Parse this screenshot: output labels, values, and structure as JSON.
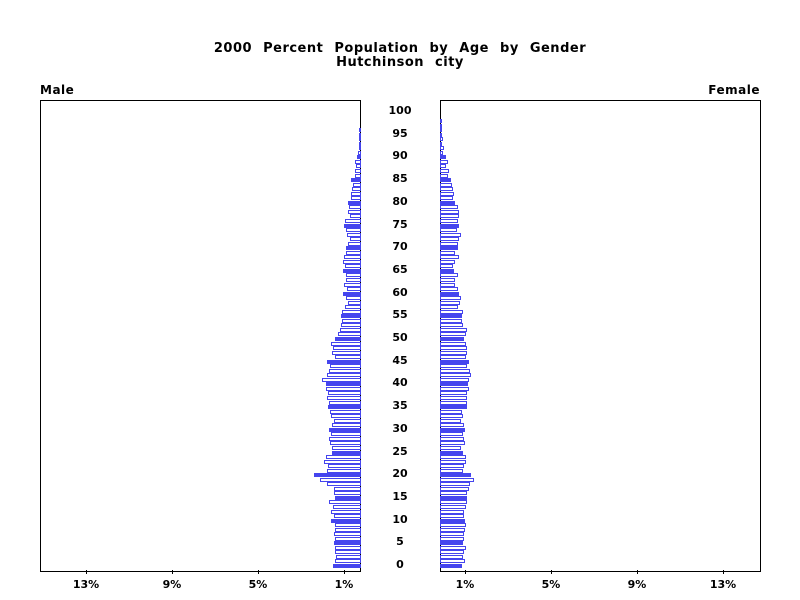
{
  "chart_data": {
    "type": "bar",
    "variant": "population-pyramid",
    "title": "2000 Percent Population by Age by Gender",
    "subtitle": "Hutchinson city",
    "left_panel_label": "Male",
    "right_panel_label": "Female",
    "age_min": 0,
    "age_max": 100,
    "bar_unit_years": 1,
    "age_tick_labels": [
      "0",
      "5",
      "10",
      "15",
      "20",
      "25",
      "30",
      "35",
      "40",
      "45",
      "50",
      "55",
      "60",
      "65",
      "70",
      "75",
      "80",
      "85",
      "90",
      "95",
      "100"
    ],
    "x_tick_labels_left": [
      "13%",
      "9%",
      "5%",
      "1%"
    ],
    "x_tick_labels_right": [
      "1%",
      "5%",
      "9%",
      "13%"
    ],
    "x_tick_values_left": [
      13,
      9,
      5,
      1
    ],
    "x_tick_values_right": [
      1,
      5,
      9,
      13
    ],
    "xlim_percent_per_side": [
      0,
      14.9
    ],
    "highlight_rule": "bars for ages divisible by 5 are solid filled; other ages are hollow outline",
    "colors": {
      "bar_outline": "#4545ee",
      "bar_fill_highlight": "#4545ee",
      "bar_fill_normal": "#ffffff",
      "axis": "#000000",
      "text": "#000000",
      "background": "#ffffff"
    },
    "series": [
      {
        "name": "Male",
        "unit": "percent of total population",
        "values": [
          1.3,
          1.23,
          1.17,
          1.2,
          1.23,
          1.27,
          1.23,
          1.26,
          1.23,
          1.2,
          1.38,
          1.27,
          1.38,
          1.3,
          1.47,
          1.23,
          1.27,
          1.27,
          1.58,
          1.9,
          2.2,
          1.58,
          1.55,
          1.7,
          1.65,
          1.35,
          1.35,
          1.45,
          1.5,
          1.38,
          1.47,
          1.35,
          1.27,
          1.38,
          1.43,
          1.53,
          1.5,
          1.58,
          1.53,
          1.62,
          1.62,
          1.8,
          1.58,
          1.5,
          1.43,
          1.6,
          1.23,
          1.35,
          1.32,
          1.38,
          1.23,
          1.08,
          0.98,
          0.93,
          0.87,
          0.93,
          0.9,
          0.75,
          0.6,
          0.72,
          0.82,
          0.63,
          0.78,
          0.72,
          0.68,
          0.82,
          0.75,
          0.85,
          0.78,
          0.68,
          0.7,
          0.6,
          0.53,
          0.63,
          0.68,
          0.78,
          0.75,
          0.53,
          0.6,
          0.55,
          0.6,
          0.48,
          0.45,
          0.42,
          0.37,
          0.48,
          0.27,
          0.3,
          0.23,
          0.27,
          0.18,
          0.12,
          0.1,
          0.06,
          0.05,
          0.04,
          0.03,
          0.02,
          0.02,
          0.01,
          0.01
        ]
      },
      {
        "name": "Female",
        "unit": "percent of total population",
        "values": [
          1.0,
          1.17,
          1.05,
          1.13,
          1.2,
          1.05,
          1.1,
          1.13,
          1.15,
          1.2,
          1.15,
          1.1,
          1.13,
          1.2,
          1.26,
          1.25,
          1.25,
          1.35,
          1.4,
          1.58,
          1.44,
          1.08,
          1.13,
          1.2,
          1.2,
          1.05,
          0.98,
          1.15,
          1.13,
          1.05,
          1.15,
          1.1,
          0.98,
          1.05,
          1.0,
          1.25,
          1.27,
          1.25,
          1.27,
          1.35,
          1.32,
          1.35,
          1.46,
          1.4,
          1.27,
          1.35,
          1.2,
          1.25,
          1.25,
          1.2,
          1.13,
          1.2,
          1.27,
          1.05,
          1.0,
          1.0,
          1.05,
          0.85,
          0.95,
          0.98,
          0.9,
          0.85,
          0.68,
          0.7,
          0.82,
          0.65,
          0.6,
          0.7,
          0.9,
          0.68,
          0.82,
          0.85,
          0.9,
          0.98,
          0.8,
          0.9,
          0.82,
          0.9,
          0.9,
          0.85,
          0.7,
          0.6,
          0.65,
          0.6,
          0.55,
          0.53,
          0.37,
          0.4,
          0.3,
          0.35,
          0.26,
          0.15,
          0.2,
          0.1,
          0.15,
          0.1,
          0.06,
          0.05,
          0.03,
          0.02,
          0.02
        ]
      }
    ]
  }
}
